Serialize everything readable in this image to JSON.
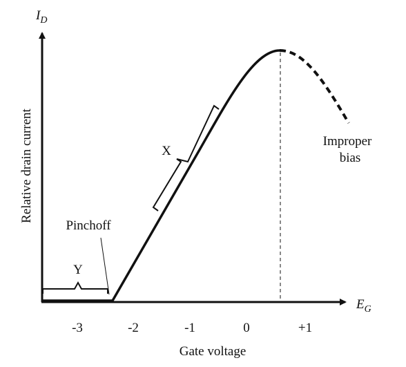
{
  "axes": {
    "y_label": "I",
    "y_label_sub": "D",
    "x_label": "E",
    "x_label_sub": "G",
    "y_title": "Relative drain current",
    "x_title": "Gate voltage",
    "ticks": [
      "-3",
      "-2",
      "-1",
      "0",
      "+1"
    ]
  },
  "annotations": {
    "pinchoff": "Pinchoff",
    "x": "X",
    "y": "Y",
    "improper": [
      "Improper",
      "bias"
    ]
  }
}
